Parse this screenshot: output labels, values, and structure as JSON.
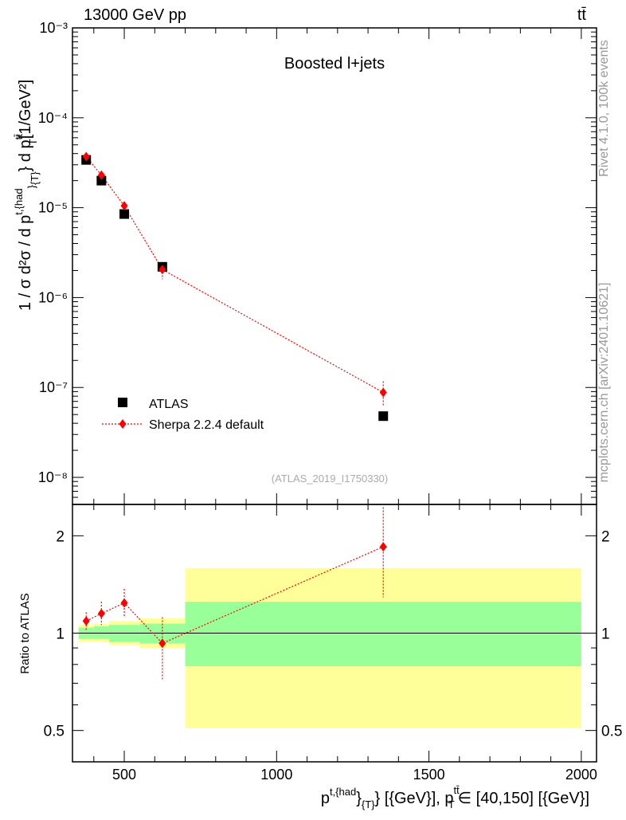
{
  "header": {
    "energy_label": "13000 GeV pp",
    "process_label": "tt̄"
  },
  "side_labels": {
    "rivet": "Rivet 4.1.0,  100k events",
    "mcplots": "mcplots.cern.ch [arXiv:2401.10621]"
  },
  "colors": {
    "data": "#000000",
    "mc": "#ff0000",
    "band_inner": "#99ff99",
    "band_outer": "#ffff99"
  },
  "chart_data": [
    {
      "type": "scatter",
      "title": "Boosted l+jets",
      "analysis_id": "(ATLAS_2019_I1750330)",
      "ylabel_main": "1 / σ d²σ / d p",
      "ylabel_sup": "t,{had",
      "ylabel_sub": "}",
      "ylabel_mid": "{T}",
      "ylabel_end": "} d p",
      "ylabel_end_sup": "tt̄",
      "ylabel_end_sub": "T",
      "ylabel_unit": "[1/GeV²]",
      "yscale": "log",
      "xlim": [
        330,
        2050
      ],
      "ylim": [
        5e-09,
        0.001
      ],
      "ytick_labels": [
        "10⁻⁸",
        "10⁻⁷",
        "10⁻⁶",
        "10⁻⁵",
        "10⁻⁴",
        "10⁻³"
      ],
      "legend": [
        "ATLAS",
        "Sherpa 2.2.4 default"
      ],
      "legend_position": "bottom-left",
      "series": [
        {
          "name": "ATLAS",
          "marker": "square",
          "x": [
            375,
            425,
            500,
            625,
            1350
          ],
          "xerr": [
            25,
            25,
            50,
            75,
            650
          ],
          "y": [
            3.4e-05,
            2e-05,
            8.5e-06,
            2.2e-06,
            4.8e-08
          ]
        },
        {
          "name": "Sherpa 2.2.4 default",
          "marker": "diamond",
          "line": "dotted",
          "x": [
            375,
            425,
            500,
            625,
            1350
          ],
          "y": [
            3.7e-05,
            2.3e-05,
            1.05e-05,
            2.05e-06,
            8.8e-08
          ],
          "yerr_low": [
            3.45e-05,
            2.1e-05,
            9.4e-06,
            1.6e-06,
            6.2e-08
          ],
          "yerr_high": [
            3.95e-05,
            2.5e-05,
            1.16e-05,
            2.45e-06,
            1.17e-07
          ]
        }
      ]
    },
    {
      "type": "scatter",
      "ylabel": "Ratio to ATLAS",
      "xlabel_main": "p",
      "xlabel_sup": "t,{had",
      "xlabel_sub": "}",
      "xlabel_mid": "{T}",
      "xlabel_rest": "} [{GeV}], p",
      "xlabel_sup2": "tt̄",
      "xlabel_sub2": "T",
      "xlabel_end": "∈ [40,150] [{GeV}]",
      "yscale": "log",
      "xlim": [
        330,
        2050
      ],
      "ylim": [
        0.4,
        2.5
      ],
      "xtick_labels": [
        "500",
        "1000",
        "1500",
        "2000"
      ],
      "xticks": [
        500,
        1000,
        1500,
        2000
      ],
      "ytick_labels": [
        "0.5",
        "1",
        "2"
      ],
      "yticks": [
        0.5,
        1,
        2
      ],
      "bands": [
        {
          "x0": 350,
          "x1": 400,
          "in_lo": 0.96,
          "in_hi": 1.04,
          "out_lo": 0.94,
          "out_hi": 1.06
        },
        {
          "x0": 400,
          "x1": 450,
          "in_lo": 0.96,
          "in_hi": 1.05,
          "out_lo": 0.94,
          "out_hi": 1.07
        },
        {
          "x0": 450,
          "x1": 550,
          "in_lo": 0.94,
          "in_hi": 1.06,
          "out_lo": 0.92,
          "out_hi": 1.09
        },
        {
          "x0": 550,
          "x1": 700,
          "in_lo": 0.93,
          "in_hi": 1.07,
          "out_lo": 0.9,
          "out_hi": 1.11
        },
        {
          "x0": 700,
          "x1": 2000,
          "in_lo": 0.79,
          "in_hi": 1.25,
          "out_lo": 0.51,
          "out_hi": 1.59
        }
      ],
      "series": [
        {
          "name": "Sherpa 2.2.4 default",
          "x": [
            375,
            425,
            500,
            625,
            1350
          ],
          "y": [
            1.09,
            1.15,
            1.24,
            0.93,
            1.85
          ],
          "yerr_low": [
            1.02,
            1.06,
            1.12,
            0.72,
            1.29
          ],
          "yerr_high": [
            1.16,
            1.25,
            1.37,
            1.12,
            2.45
          ]
        }
      ]
    }
  ]
}
